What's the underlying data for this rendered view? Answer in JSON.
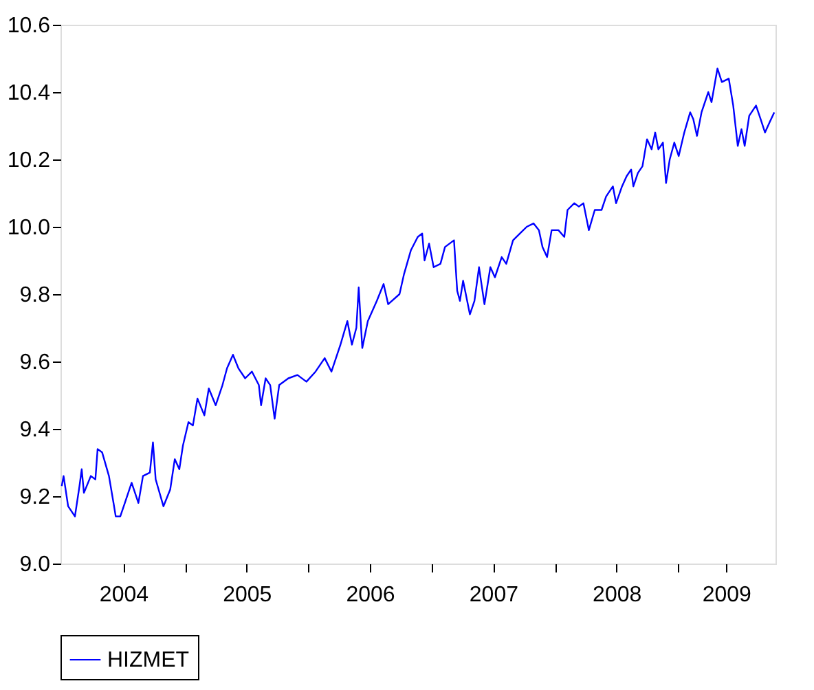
{
  "chart_data": {
    "type": "line",
    "x": [
      2004.0,
      2004.015,
      2004.052,
      2004.107,
      2004.144,
      2004.162,
      2004.18,
      2004.236,
      2004.273,
      2004.291,
      2004.328,
      2004.383,
      2004.42,
      2004.438,
      2004.475,
      2004.512,
      2004.567,
      2004.622,
      2004.659,
      2004.715,
      2004.74,
      2004.762,
      2004.825,
      2004.88,
      2004.917,
      2004.954,
      2004.983,
      2005.028,
      2005.064,
      2005.101,
      2005.157,
      2005.193,
      2005.249,
      2005.304,
      2005.341,
      2005.389,
      2005.433,
      2005.488,
      2005.543,
      2005.599,
      2005.617,
      2005.654,
      2005.691,
      2005.727,
      2005.764,
      2005.838,
      2005.912,
      2005.985,
      2006.059,
      2006.133,
      2006.188,
      2006.261,
      2006.317,
      2006.354,
      2006.39,
      2006.409,
      2006.438,
      2006.483,
      2006.556,
      2006.611,
      2006.648,
      2006.74,
      2006.777,
      2006.832,
      2006.888,
      2006.924,
      2006.943,
      2006.98,
      2007.017,
      2007.072,
      2007.109,
      2007.182,
      2007.208,
      2007.23,
      2007.256,
      2007.311,
      2007.348,
      2007.385,
      2007.429,
      2007.477,
      2007.514,
      2007.569,
      2007.606,
      2007.661,
      2007.716,
      2007.772,
      2007.827,
      2007.871,
      2007.9,
      2007.937,
      2007.974,
      2008.029,
      2008.077,
      2008.103,
      2008.158,
      2008.195,
      2008.232,
      2008.276,
      2008.324,
      2008.379,
      2008.416,
      2008.471,
      2008.497,
      2008.545,
      2008.582,
      2008.619,
      2008.637,
      2008.674,
      2008.711,
      2008.748,
      2008.785,
      2008.814,
      2008.84,
      2008.877,
      2008.902,
      2008.932,
      2008.969,
      2009.005,
      2009.05,
      2009.098,
      2009.123,
      2009.153,
      2009.19,
      2009.245,
      2009.271,
      2009.319,
      2009.355,
      2009.411,
      2009.447,
      2009.484,
      2009.514,
      2009.54,
      2009.577,
      2009.632,
      2009.669,
      2009.705,
      2009.742,
      2009.78
    ],
    "series": [
      {
        "name": "HIZMET",
        "color": "#0000ff",
        "values": [
          9.23,
          9.26,
          9.17,
          9.14,
          9.23,
          9.28,
          9.21,
          9.26,
          9.25,
          9.34,
          9.33,
          9.26,
          9.18,
          9.14,
          9.14,
          9.18,
          9.24,
          9.18,
          9.26,
          9.27,
          9.36,
          9.25,
          9.17,
          9.22,
          9.31,
          9.28,
          9.35,
          9.42,
          9.41,
          9.49,
          9.44,
          9.52,
          9.47,
          9.53,
          9.58,
          9.62,
          9.58,
          9.55,
          9.57,
          9.53,
          9.47,
          9.55,
          9.53,
          9.43,
          9.53,
          9.55,
          9.56,
          9.54,
          9.57,
          9.61,
          9.57,
          9.65,
          9.72,
          9.65,
          9.7,
          9.82,
          9.64,
          9.72,
          9.78,
          9.83,
          9.77,
          9.8,
          9.86,
          9.93,
          9.97,
          9.98,
          9.9,
          9.95,
          9.88,
          9.89,
          9.94,
          9.96,
          9.81,
          9.78,
          9.84,
          9.74,
          9.78,
          9.88,
          9.77,
          9.88,
          9.85,
          9.91,
          9.89,
          9.96,
          9.98,
          10.0,
          10.01,
          9.99,
          9.94,
          9.91,
          9.99,
          9.99,
          9.97,
          10.05,
          10.07,
          10.06,
          10.07,
          9.99,
          10.05,
          10.05,
          10.09,
          10.12,
          10.07,
          10.12,
          10.15,
          10.17,
          10.12,
          10.16,
          10.18,
          10.26,
          10.23,
          10.28,
          10.23,
          10.25,
          10.13,
          10.2,
          10.25,
          10.21,
          10.28,
          10.34,
          10.32,
          10.27,
          10.34,
          10.4,
          10.37,
          10.47,
          10.43,
          10.44,
          10.36,
          10.24,
          10.29,
          10.24,
          10.33,
          10.36,
          10.32,
          10.28,
          10.31,
          10.34
        ]
      }
    ],
    "xlim": [
      2003.99,
      2009.79
    ],
    "xticks": [
      {
        "value": 2004.5,
        "label": "2004"
      },
      {
        "value": 2005,
        "label": null
      },
      {
        "value": 2005.5,
        "label": "2005"
      },
      {
        "value": 2006,
        "label": null
      },
      {
        "value": 2006.5,
        "label": "2006"
      },
      {
        "value": 2007,
        "label": null
      },
      {
        "value": 2007.5,
        "label": "2007"
      },
      {
        "value": 2008,
        "label": null
      },
      {
        "value": 2008.5,
        "label": "2008"
      },
      {
        "value": 2009,
        "label": null
      },
      {
        "value": 2009.39,
        "label": "2009"
      }
    ],
    "ylim": [
      9.0,
      10.6
    ],
    "yticks": [
      {
        "value": 9.0,
        "label": "9.0"
      },
      9.2,
      9.4,
      9.6,
      9.8,
      {
        "value": 10.0,
        "label": "10.0"
      },
      10.2,
      10.4,
      10.6
    ],
    "grid": false,
    "legend": "bottom",
    "line_style": "solid",
    "marker": "none"
  }
}
